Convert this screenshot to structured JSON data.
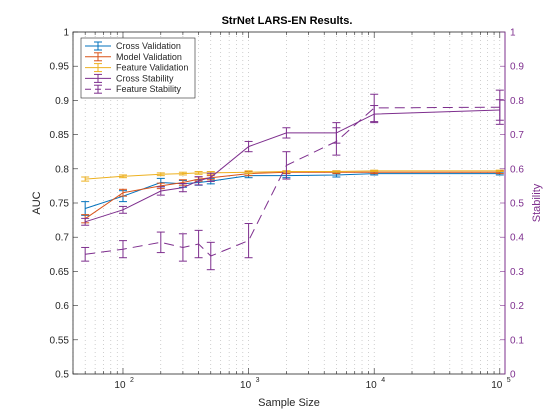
{
  "chart_data": {
    "type": "line",
    "title": "StrNet LARS-EN Results.",
    "xlabel": "Sample Size",
    "ylabel_left": "AUC",
    "ylabel_right": "Stability",
    "x_scale": "log",
    "xlim": [
      40,
      110000
    ],
    "ylim_left": [
      0.5,
      1.0
    ],
    "ylim_right": [
      0,
      1
    ],
    "grid": "x-minor-dotted",
    "legend_position": "top-left",
    "x_ticks": [
      {
        "value": 100,
        "base": "10",
        "exp": "2"
      },
      {
        "value": 1000,
        "base": "10",
        "exp": "3"
      },
      {
        "value": 10000,
        "base": "10",
        "exp": "4"
      },
      {
        "value": 100000,
        "base": "10",
        "exp": "5"
      }
    ],
    "y_ticks_left": [
      "0.5",
      "0.55",
      "0.6",
      "0.65",
      "0.7",
      "0.75",
      "0.8",
      "0.85",
      "0.9",
      "0.95",
      "1"
    ],
    "y_ticks_right": [
      "0",
      "0.1",
      "0.2",
      "0.3",
      "0.4",
      "0.5",
      "0.6",
      "0.7",
      "0.8",
      "0.9",
      "1"
    ],
    "x": [
      50,
      100,
      200,
      300,
      400,
      500,
      1000,
      2000,
      5000,
      10000,
      100000
    ],
    "series": [
      {
        "name": "Cross Validation",
        "axis": "left",
        "color": "#0072BD",
        "dash": "",
        "values": [
          0.742,
          0.76,
          0.78,
          0.778,
          0.78,
          0.782,
          0.79,
          0.79,
          0.791,
          0.793,
          0.793
        ],
        "err": [
          0.01,
          0.008,
          0.006,
          0.005,
          0.004,
          0.004,
          0.003,
          0.003,
          0.003,
          0.002,
          0.002
        ]
      },
      {
        "name": "Model Validation",
        "axis": "left",
        "color": "#D95319",
        "dash": "",
        "values": [
          0.727,
          0.765,
          0.775,
          0.78,
          0.785,
          0.787,
          0.793,
          0.795,
          0.795,
          0.795,
          0.795
        ],
        "err": [
          0.006,
          0.005,
          0.004,
          0.004,
          0.003,
          0.003,
          0.003,
          0.002,
          0.002,
          0.002,
          0.002
        ]
      },
      {
        "name": "Feature Validation",
        "axis": "left",
        "color": "#EDB120",
        "dash": "",
        "values": [
          0.785,
          0.789,
          0.792,
          0.793,
          0.794,
          0.794,
          0.795,
          0.796,
          0.796,
          0.797,
          0.797
        ],
        "err": [
          0.003,
          0.002,
          0.002,
          0.002,
          0.002,
          0.002,
          0.002,
          0.001,
          0.001,
          0.001,
          0.001
        ]
      },
      {
        "name": "Cross Stability",
        "axis": "right",
        "color": "#7E2F8E",
        "dash": "",
        "values": [
          0.445,
          0.48,
          0.535,
          0.545,
          0.565,
          0.575,
          0.665,
          0.705,
          0.705,
          0.76,
          0.772
        ],
        "err": [
          0.01,
          0.01,
          0.012,
          0.012,
          0.012,
          0.012,
          0.015,
          0.015,
          0.03,
          0.025,
          0.03
        ]
      },
      {
        "name": "Feature Stability",
        "axis": "right",
        "color": "#7E2F8E",
        "dash": "10,6",
        "values": [
          0.35,
          0.365,
          0.385,
          0.37,
          0.38,
          0.345,
          0.39,
          0.61,
          0.68,
          0.778,
          0.78
        ],
        "err": [
          0.02,
          0.025,
          0.03,
          0.04,
          0.04,
          0.04,
          0.05,
          0.04,
          0.04,
          0.04,
          0.05
        ]
      }
    ]
  }
}
